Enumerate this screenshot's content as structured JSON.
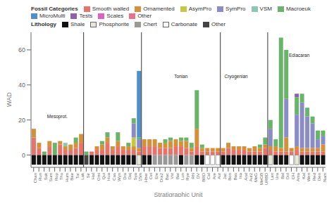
{
  "chart_data": {
    "type": "bar",
    "stacked": true,
    "grid": false,
    "xlabel": "Stratigraphic Unit",
    "ylabel": "WAD",
    "categories": [
      "Chan",
      "Run",
      "Suk",
      "Sum",
      "Rop",
      "Thu",
      "Hum",
      "Bae",
      "Tor",
      "Lak",
      "Sir",
      "Hal",
      "Omi",
      "Qui",
      "Hua",
      "Cas",
      "Wyn",
      "Dra",
      "Daj",
      "Sya",
      "15m",
      "Hber",
      "Cel",
      "Ele",
      "Dra2",
      "Bac",
      "Vst",
      "Bat",
      "Lun",
      "Rye",
      "RN",
      "DV",
      "BRD",
      "Cal",
      "Are",
      "Aut",
      "Jac",
      "Bon",
      "Bas",
      "Isa",
      "Aral",
      "Aut2",
      "MeG",
      "MeGB",
      "URBD",
      "Lan",
      "Ura",
      "Bal",
      "Dol",
      "OH",
      "Ama",
      "Kal",
      "Wen",
      "Red",
      "Den",
      "Nam"
    ],
    "ylim": [
      -7,
      70
    ],
    "yticks": [
      0,
      20,
      40,
      60
    ],
    "legend_title": "Fossil Categories",
    "series": [
      {
        "name": "Smooth walled",
        "color": "#e8736b",
        "values": [
          10,
          4,
          0,
          5,
          0,
          6,
          3,
          3,
          4,
          7,
          0,
          2,
          3,
          3,
          7,
          3,
          5,
          3,
          3,
          3,
          2,
          5,
          5,
          5,
          4,
          4,
          4,
          5,
          5,
          4,
          2,
          5,
          2,
          2,
          2,
          2,
          2,
          4,
          3,
          3,
          3,
          2,
          2,
          2,
          4,
          3,
          2,
          2,
          2,
          2,
          3,
          2,
          2,
          2,
          2,
          2
        ]
      },
      {
        "name": "Ornamented",
        "color": "#d4913a",
        "values": [
          5,
          3,
          0,
          3,
          0,
          2,
          2,
          3,
          3,
          5,
          0,
          0,
          2,
          3,
          3,
          2,
          3,
          2,
          2,
          2,
          2,
          4,
          4,
          4,
          3,
          3,
          4,
          4,
          3,
          4,
          2,
          10,
          2,
          2,
          2,
          2,
          2,
          3,
          2,
          2,
          2,
          2,
          3,
          2,
          2,
          2,
          3,
          2,
          8,
          2,
          2,
          2,
          2,
          2,
          2,
          4
        ]
      },
      {
        "name": "AsymPro",
        "color": "#c8c840",
        "values": [
          0,
          0,
          0,
          0,
          0,
          0,
          0,
          0,
          0,
          0,
          0,
          0,
          0,
          0,
          0,
          0,
          0,
          0,
          0,
          5,
          0,
          0,
          0,
          0,
          0,
          0,
          0,
          0,
          0,
          0,
          0,
          0,
          0,
          0,
          0,
          0,
          0,
          0,
          0,
          0,
          0,
          0,
          0,
          0,
          0,
          0,
          0,
          0,
          0,
          0,
          0,
          0,
          0,
          0,
          0,
          0
        ]
      },
      {
        "name": "SymPro",
        "color": "#8b8bc8",
        "values": [
          0,
          0,
          0,
          0,
          0,
          0,
          0,
          0,
          0,
          0,
          0,
          0,
          0,
          0,
          0,
          0,
          0,
          0,
          0,
          8,
          5,
          0,
          0,
          0,
          0,
          0,
          0,
          0,
          0,
          0,
          0,
          0,
          0,
          0,
          0,
          0,
          0,
          0,
          0,
          0,
          0,
          0,
          0,
          0,
          0,
          10,
          0,
          0,
          22,
          0,
          18,
          26,
          18,
          14,
          5,
          5
        ]
      },
      {
        "name": "VSM",
        "color": "#8bc8b4",
        "values": [
          0,
          0,
          0,
          0,
          0,
          0,
          2,
          0,
          0,
          0,
          0,
          0,
          0,
          0,
          0,
          0,
          0,
          0,
          0,
          0,
          0,
          0,
          0,
          0,
          0,
          0,
          0,
          0,
          0,
          0,
          0,
          0,
          0,
          0,
          0,
          0,
          0,
          0,
          0,
          0,
          0,
          0,
          0,
          0,
          0,
          0,
          0,
          0,
          0,
          0,
          0,
          0,
          0,
          0,
          0,
          0
        ]
      },
      {
        "name": "Macroeuk",
        "color": "#6ab46a",
        "values": [
          0,
          0,
          2,
          0,
          7,
          0,
          0,
          0,
          3,
          0,
          2,
          0,
          0,
          2,
          3,
          0,
          5,
          0,
          2,
          3,
          1,
          0,
          0,
          0,
          0,
          2,
          2,
          0,
          2,
          2,
          3,
          22,
          2,
          0,
          0,
          0,
          0,
          0,
          0,
          0,
          0,
          0,
          0,
          2,
          4,
          5,
          4,
          63,
          28,
          0,
          10,
          5,
          5,
          4,
          5,
          3
        ]
      },
      {
        "name": "MicroMulti",
        "color": "#5090c8",
        "values": [
          0,
          0,
          0,
          0,
          0,
          0,
          0,
          0,
          0,
          0,
          0,
          0,
          0,
          0,
          0,
          0,
          0,
          0,
          0,
          0,
          38,
          0,
          0,
          0,
          0,
          0,
          0,
          0,
          0,
          0,
          0,
          0,
          0,
          0,
          0,
          0,
          0,
          0,
          0,
          0,
          0,
          0,
          0,
          0,
          0,
          0,
          0,
          0,
          0,
          0,
          0,
          0,
          0,
          0,
          0,
          0
        ]
      },
      {
        "name": "Tests",
        "color": "#9060b0",
        "values": [
          0,
          0,
          0,
          0,
          0,
          0,
          0,
          0,
          0,
          0,
          0,
          0,
          0,
          0,
          0,
          0,
          0,
          0,
          0,
          0,
          0,
          0,
          0,
          0,
          0,
          0,
          0,
          0,
          0,
          0,
          0,
          0,
          0,
          0,
          0,
          0,
          0,
          0,
          0,
          0,
          0,
          0,
          0,
          0,
          0,
          0,
          0,
          0,
          0,
          0,
          2,
          0,
          0,
          0,
          0,
          0
        ]
      },
      {
        "name": "Scales",
        "color": "#e060c0",
        "values": [
          0,
          0,
          0,
          0,
          0,
          0,
          0,
          0,
          0,
          0,
          0,
          0,
          0,
          0,
          0,
          0,
          0,
          0,
          0,
          0,
          0,
          0,
          0,
          0,
          0,
          0,
          0,
          0,
          0,
          0,
          0,
          0,
          0,
          0,
          0,
          0,
          0,
          0,
          0,
          0,
          0,
          0,
          0,
          0,
          0,
          0,
          0,
          0,
          0,
          0,
          0,
          0,
          0,
          0,
          0,
          0
        ]
      },
      {
        "name": "Other",
        "color": "#e87090",
        "values": [
          0,
          0,
          0,
          0,
          0,
          0,
          0,
          0,
          0,
          0,
          0,
          0,
          0,
          0,
          0,
          0,
          0,
          0,
          0,
          0,
          0,
          0,
          0,
          0,
          0,
          0,
          0,
          0,
          0,
          0,
          0,
          0,
          0,
          0,
          0,
          0,
          0,
          0,
          0,
          0,
          0,
          0,
          0,
          0,
          0,
          0,
          0,
          0,
          0,
          0,
          0,
          0,
          0,
          0,
          0,
          0
        ]
      }
    ],
    "lithology": {
      "title": "Lithology",
      "types": [
        "Shale",
        "Shale",
        "Shale",
        "Shale",
        "Shale",
        "Shale",
        "Shale",
        "Shale",
        "Shale",
        "Shale",
        "Other",
        "Shale",
        "Shale",
        "Shale",
        "Shale",
        "Shale",
        "Shale",
        "Shale",
        "Shale",
        "Shale",
        "Phosphorite",
        "Shale",
        "Shale",
        "Chert",
        "Chert",
        "Chert",
        "Chert",
        "Chert",
        "Shale",
        "Chert",
        "Chert",
        "Shale",
        "Shale",
        "Carbonate",
        "Carbonate",
        "Carbonate",
        "Shale",
        "Shale",
        "Shale",
        "Shale",
        "Shale",
        "Shale",
        "Shale",
        "Shale",
        "Shale",
        "Phosphorite",
        "Shale",
        "Shale",
        "Shale",
        "Carbonate",
        "Phosphorite",
        "Shale",
        "Shale",
        "Shale",
        "Shale",
        "Shale"
      ],
      "values": [
        -5.5,
        -5.5,
        -5.5,
        -5.5,
        -5.5,
        -5.5,
        -5.5,
        -5.5,
        -5.5,
        -5.5,
        -5.5,
        -5.5,
        -5.5,
        -5.5,
        -5.5,
        -5.5,
        -5.5,
        -5.5,
        -5.5,
        -5.5,
        -5.5,
        -5.5,
        -5.5,
        -5.5,
        -5.5,
        -5.5,
        -5.5,
        -5.5,
        -5.5,
        -5.5,
        -5.5,
        -5.5,
        -5.5,
        -5.5,
        -5.5,
        -5.5,
        -5.5,
        -5.5,
        -5.5,
        -5.5,
        -5.5,
        -5.5,
        -5.5,
        -5.5,
        -5.5,
        -5.5,
        -5.5,
        -5.5,
        -5.5,
        -5.5,
        -5.5,
        -5.5,
        -5.5,
        -5.5,
        -5.5,
        -5.5
      ],
      "legend": [
        {
          "name": "Shale",
          "color": "#111111"
        },
        {
          "name": "Phosphorite",
          "color": "#e8e8d8"
        },
        {
          "name": "Chert",
          "color": "#999999"
        },
        {
          "name": "Carbonate",
          "color": "#ffffff"
        },
        {
          "name": "Other",
          "color": "#444444"
        }
      ]
    },
    "vlines": [
      9.5,
      20.5,
      35.5,
      44.5
    ],
    "annotations": [
      {
        "x": 4.5,
        "y": 22,
        "text": "Mesoprot."
      },
      {
        "x": 28.0,
        "y": 45,
        "text": "Tonian"
      },
      {
        "x": 38.5,
        "y": 45,
        "text": "Cryogenian"
      },
      {
        "x": 50.5,
        "y": 57,
        "text": "Ediacaran"
      }
    ]
  }
}
